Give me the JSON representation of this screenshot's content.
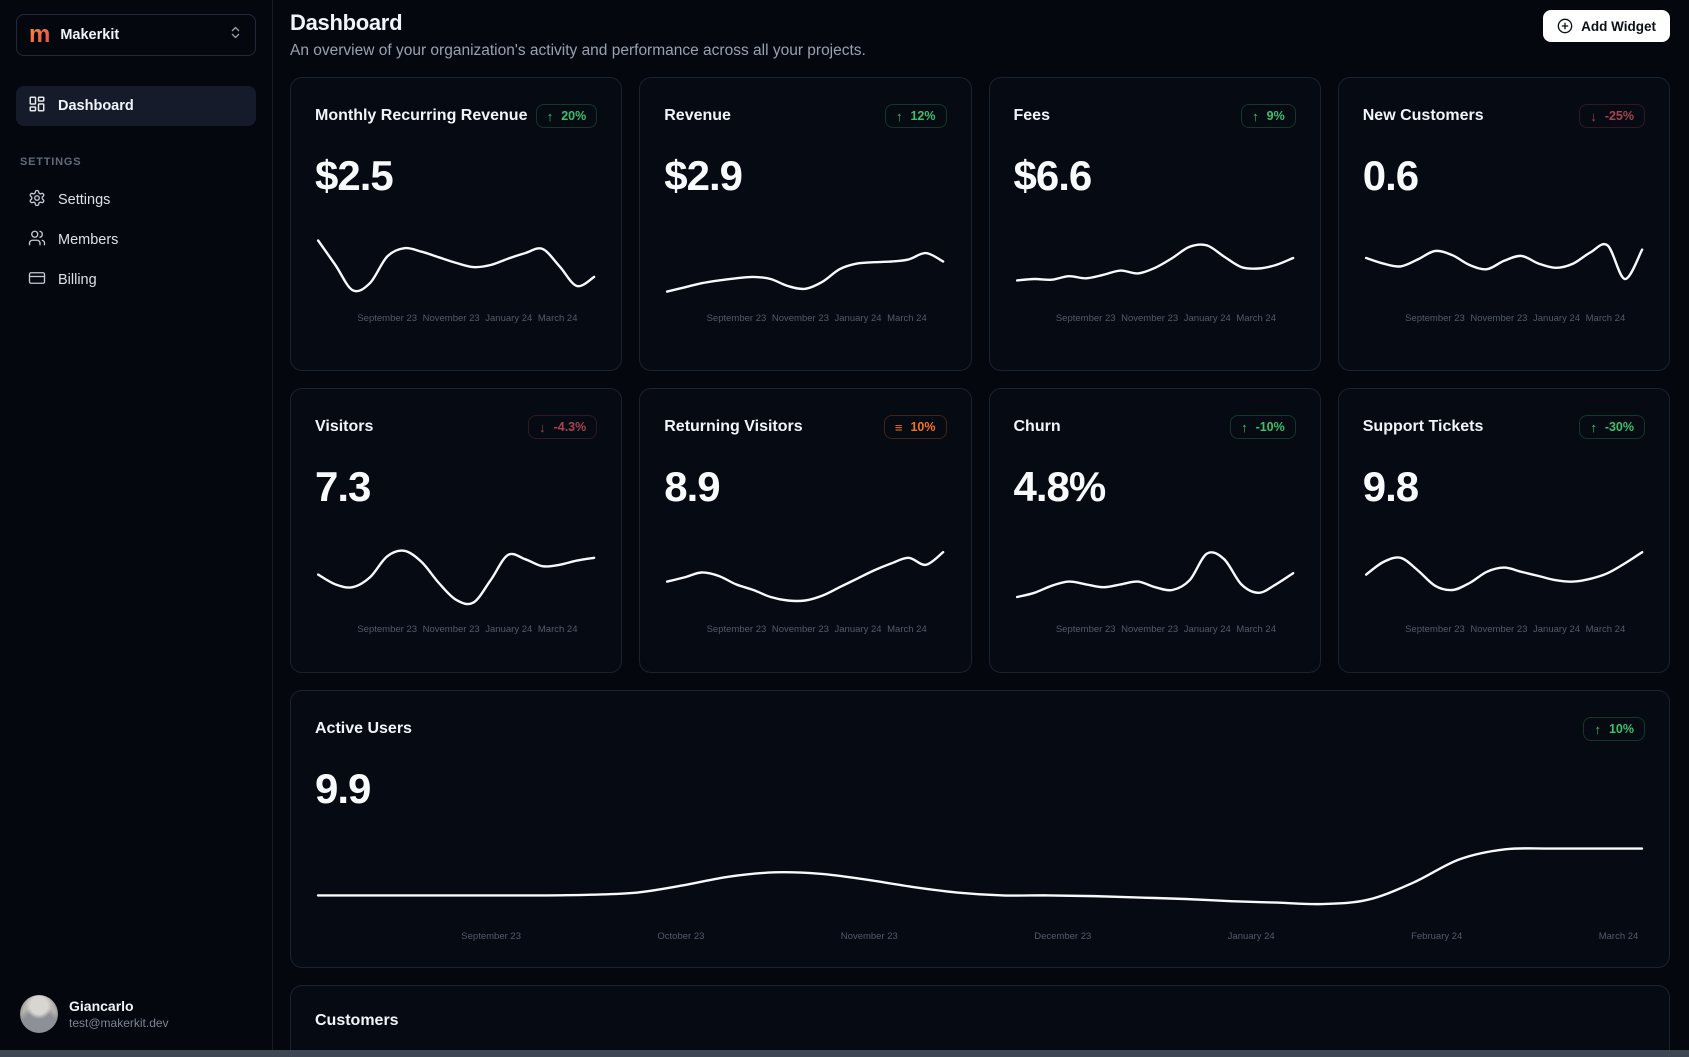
{
  "colors": {
    "green": "#3cc06d",
    "red": "#a6434e",
    "orange": "#f97316",
    "line": "#f8fafc"
  },
  "sidebar": {
    "logo_letter": "m",
    "workspace": "Makerkit",
    "nav": [
      {
        "label": "Dashboard"
      }
    ],
    "section": "SETTINGS",
    "settings_items": [
      {
        "label": "Settings"
      },
      {
        "label": "Members"
      },
      {
        "label": "Billing"
      }
    ],
    "user": {
      "name": "Giancarlo",
      "email": "test@makerkit.dev"
    }
  },
  "header": {
    "title": "Dashboard",
    "subtitle": "An overview of your organization's activity and performance across all your projects.",
    "add_widget": "Add Widget"
  },
  "cards": [
    {
      "title": "Monthly Recurring Revenue",
      "value": "$2.5",
      "trend": {
        "icon": "↑",
        "label": "20%",
        "color": "green"
      },
      "x_labels": [
        "September 23",
        "November 23",
        "January 24",
        "March 24"
      ],
      "spark": [
        85,
        50,
        14,
        24,
        62,
        74,
        69,
        61,
        53,
        47,
        50,
        59,
        67,
        73,
        48,
        20,
        33
      ]
    },
    {
      "title": "Revenue",
      "value": "$2.9",
      "trend": {
        "icon": "↑",
        "label": "12%",
        "color": "green"
      },
      "x_labels": [
        "September 23",
        "November 23",
        "January 24",
        "March 24"
      ],
      "spark": [
        12,
        18,
        24,
        28,
        31,
        33,
        30,
        20,
        16,
        26,
        44,
        52,
        54,
        55,
        58,
        67,
        55
      ]
    },
    {
      "title": "Fees",
      "value": "$6.6",
      "trend": {
        "icon": "↑",
        "label": "9%",
        "color": "green"
      },
      "x_labels": [
        "September 23",
        "November 23",
        "January 24",
        "March 24"
      ],
      "spark": [
        28,
        30,
        29,
        34,
        31,
        36,
        42,
        38,
        46,
        60,
        76,
        78,
        62,
        47,
        45,
        50,
        60
      ]
    },
    {
      "title": "New Customers",
      "value": "0.6",
      "trend": {
        "icon": "↓",
        "label": "-25%",
        "color": "red"
      },
      "x_labels": [
        "September 23",
        "November 23",
        "January 24",
        "March 24"
      ],
      "spark": [
        60,
        52,
        48,
        58,
        70,
        64,
        50,
        44,
        56,
        63,
        52,
        46,
        52,
        68,
        78,
        30,
        72
      ]
    },
    {
      "title": "Visitors",
      "value": "7.3",
      "trend": {
        "icon": "↓",
        "label": "-4.3%",
        "color": "red"
      },
      "x_labels": [
        "September 23",
        "November 23",
        "January 24",
        "March 24"
      ],
      "spark": [
        52,
        38,
        34,
        48,
        78,
        86,
        70,
        40,
        16,
        12,
        44,
        80,
        74,
        64,
        66,
        72,
        76
      ]
    },
    {
      "title": "Returning Visitors",
      "value": "8.9",
      "trend": {
        "icon": "≡",
        "label": "10%",
        "color": "orange"
      },
      "x_labels": [
        "September 23",
        "November 23",
        "January 24",
        "March 24"
      ],
      "spark": [
        42,
        48,
        55,
        50,
        38,
        30,
        20,
        15,
        15,
        22,
        34,
        46,
        58,
        68,
        76,
        66,
        84
      ]
    },
    {
      "title": "Churn",
      "value": "4.8%",
      "trend": {
        "icon": "↑",
        "label": "-10%",
        "color": "green"
      },
      "x_labels": [
        "September 23",
        "November 23",
        "January 24",
        "March 24"
      ],
      "spark": [
        20,
        26,
        36,
        42,
        38,
        34,
        38,
        42,
        34,
        30,
        44,
        82,
        74,
        38,
        26,
        38,
        54
      ]
    },
    {
      "title": "Support Tickets",
      "value": "9.8",
      "trend": {
        "icon": "↑",
        "label": "-30%",
        "color": "green"
      },
      "x_labels": [
        "September 23",
        "November 23",
        "January 24",
        "March 24"
      ],
      "spark": [
        52,
        70,
        76,
        58,
        36,
        30,
        40,
        56,
        62,
        56,
        50,
        44,
        42,
        46,
        54,
        68,
        84
      ]
    }
  ],
  "active_users": {
    "title": "Active Users",
    "value": "9.9",
    "trend": {
      "icon": "↑",
      "label": "10%",
      "color": "green"
    },
    "x_labels": [
      "September 23",
      "October 23",
      "November 23",
      "December 23",
      "January 24",
      "February 24",
      "March 24"
    ],
    "spark": [
      30,
      30,
      30,
      30,
      30,
      30,
      31,
      34,
      44,
      56,
      62,
      60,
      52,
      42,
      34,
      30,
      30,
      29,
      27,
      25,
      22,
      20,
      18,
      24,
      48,
      80,
      94,
      95,
      95,
      95
    ]
  },
  "customers": {
    "title": "Customers"
  }
}
